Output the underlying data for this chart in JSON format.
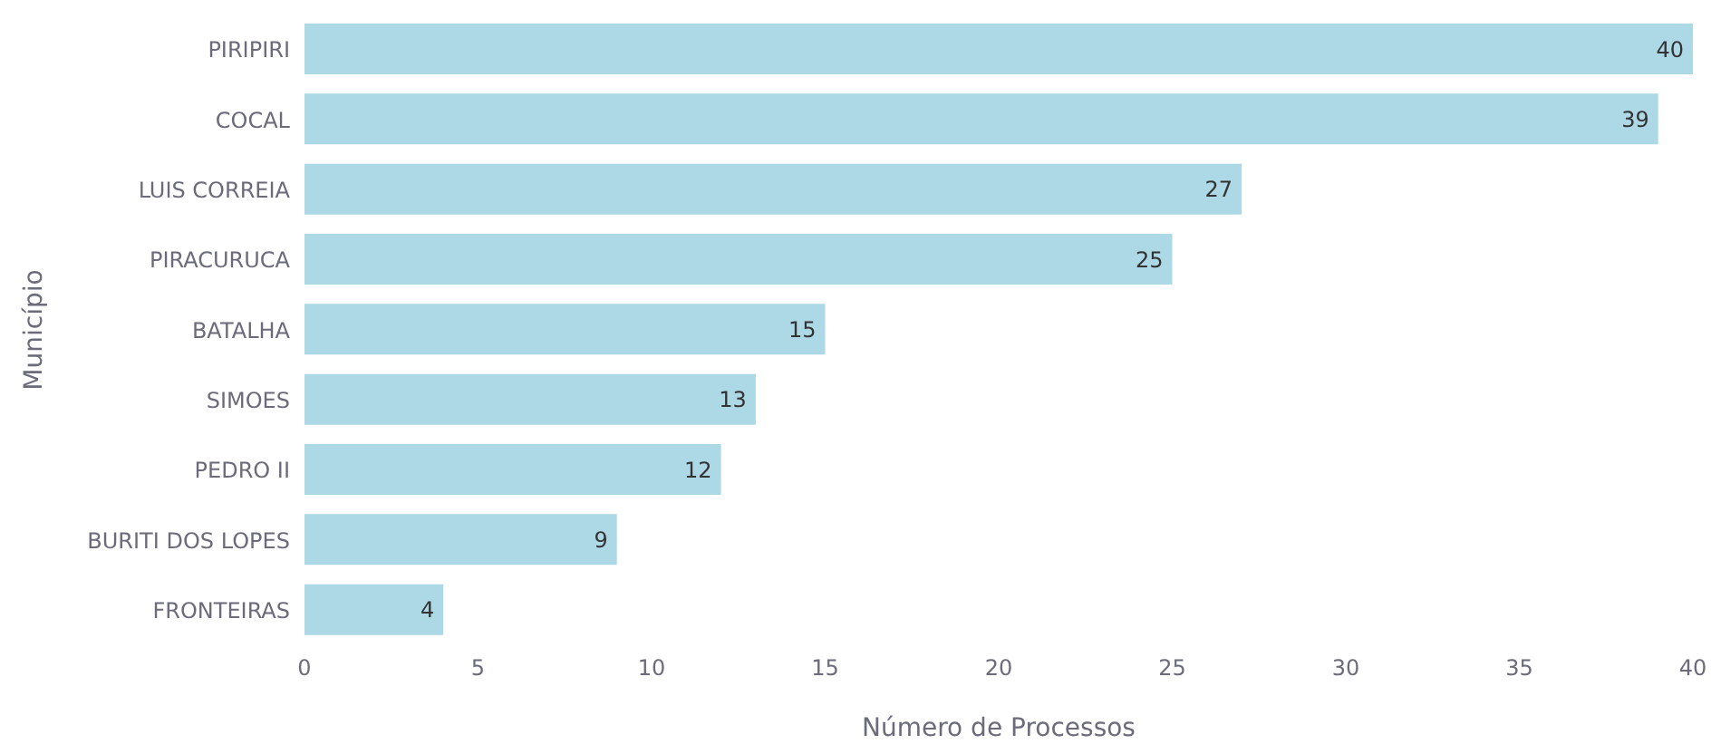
{
  "chart_data": {
    "type": "bar",
    "orientation": "horizontal",
    "xlabel": "Número de Processos",
    "ylabel": "Município",
    "categories": [
      "PIRIPIRI",
      "COCAL",
      "LUIS CORREIA",
      "PIRACURUCA",
      "BATALHA",
      "SIMOES",
      "PEDRO II",
      "BURITI DOS LOPES",
      "FRONTEIRAS"
    ],
    "values": [
      40,
      39,
      27,
      25,
      15,
      13,
      12,
      9,
      4
    ],
    "color": "#add8e6",
    "xlim": [
      0,
      40
    ],
    "xticks": [
      0,
      5,
      10,
      15,
      20,
      25,
      30,
      35,
      40
    ],
    "grid": false,
    "legend": false,
    "data_labels": true
  }
}
